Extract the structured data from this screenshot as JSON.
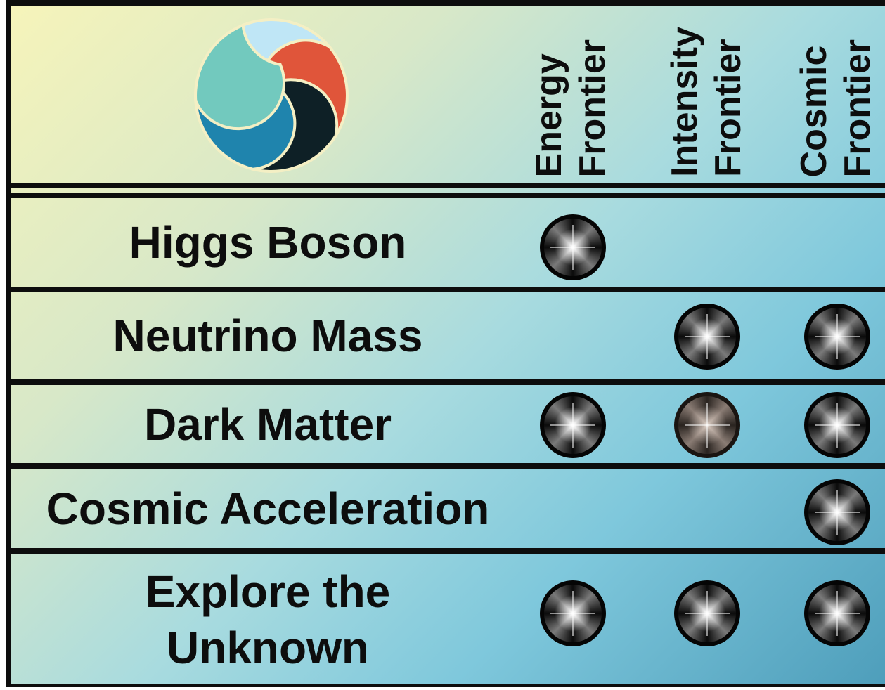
{
  "columns": [
    {
      "line1": "Energy",
      "line2": "Frontier"
    },
    {
      "line1": "Intensity",
      "line2": "Frontier"
    },
    {
      "line1": "Cosmic",
      "line2": "Frontier"
    }
  ],
  "rows": [
    {
      "label": "Higgs Boson",
      "marks": [
        true,
        false,
        false
      ]
    },
    {
      "label": "Neutrino Mass",
      "marks": [
        false,
        true,
        true
      ]
    },
    {
      "label": "Dark Matter",
      "marks": [
        true,
        true,
        true
      ]
    },
    {
      "label": "Cosmic Acceleration",
      "marks": [
        false,
        false,
        true
      ]
    },
    {
      "label_line1": "Explore the",
      "label_line2": "Unknown",
      "marks": [
        true,
        true,
        true
      ]
    }
  ],
  "logo": {
    "icon": "pinwheel-logo",
    "colors": [
      "#bfe6f6",
      "#e0553a",
      "#0e2026",
      "#1f84ad",
      "#72c9be"
    ]
  }
}
